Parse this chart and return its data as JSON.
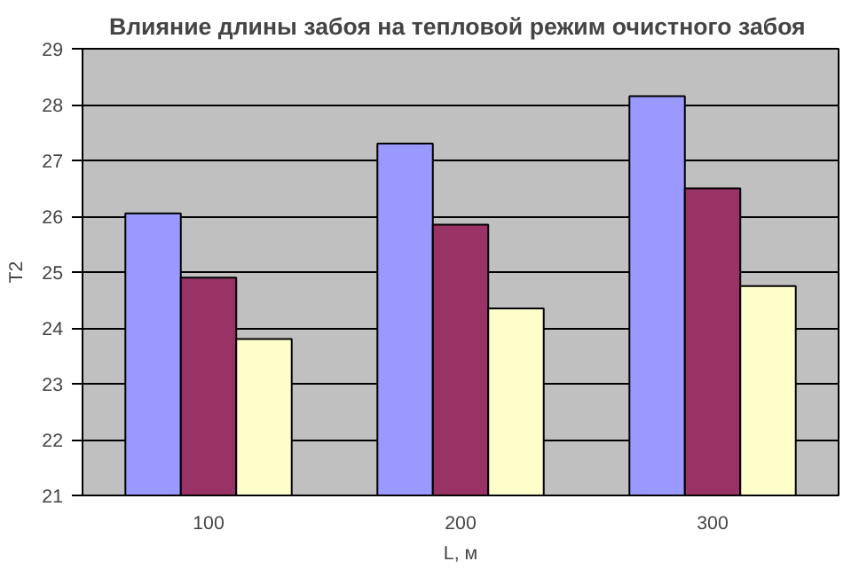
{
  "chart_data": {
    "type": "bar",
    "title": "Влияние длины  забоя на тепловой режим очистного забоя",
    "xlabel": "L, м",
    "ylabel": "T2",
    "categories": [
      "100",
      "200",
      "300"
    ],
    "series": [
      {
        "color": "#9999ff",
        "values": [
          26.05,
          27.3,
          28.15
        ]
      },
      {
        "color": "#993366",
        "values": [
          24.9,
          25.85,
          26.5
        ]
      },
      {
        "color": "#ffffcc",
        "values": [
          23.8,
          24.35,
          24.75
        ]
      }
    ],
    "ylim": [
      21,
      29
    ],
    "yticks": [
      21,
      22,
      23,
      24,
      25,
      26,
      27,
      28,
      29
    ],
    "grid": "y"
  }
}
